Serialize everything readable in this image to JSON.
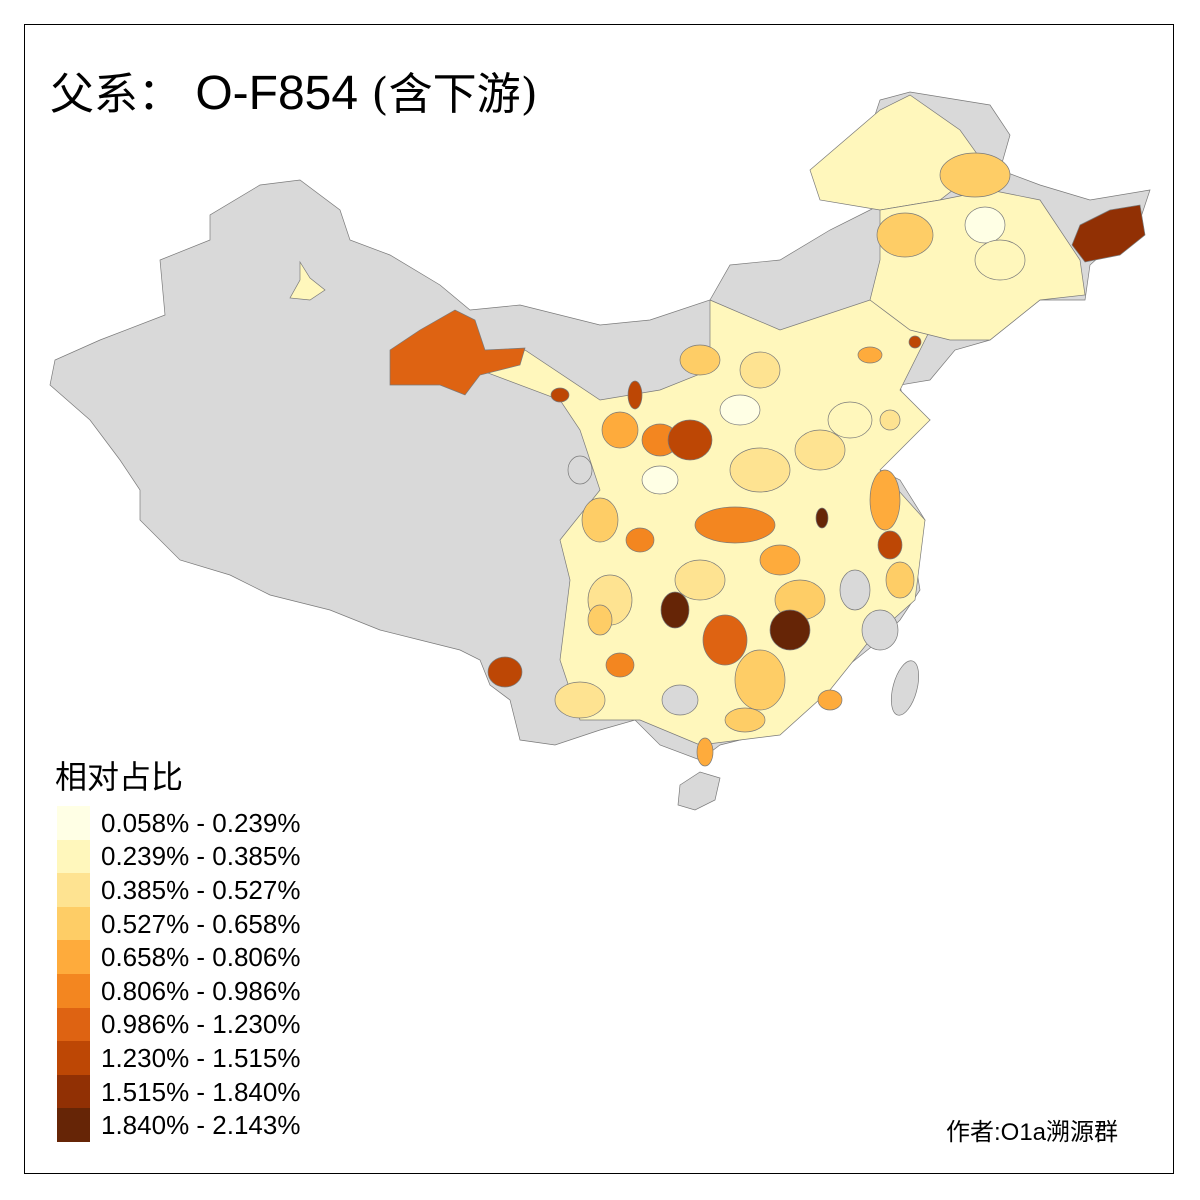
{
  "title": {
    "prefix": "父系：",
    "haplogroup": "O-F854",
    "suffix": "(含下游)"
  },
  "legend": {
    "title": "相对占比",
    "items": [
      {
        "label": "0.058% - 0.239%",
        "color": "#FFFFE5"
      },
      {
        "label": "0.239% - 0.385%",
        "color": "#FFF7BC"
      },
      {
        "label": "0.385% - 0.527%",
        "color": "#FEE391"
      },
      {
        "label": "0.527% - 0.658%",
        "color": "#FECD66"
      },
      {
        "label": "0.658% - 0.806%",
        "color": "#FEAB3C"
      },
      {
        "label": "0.806% - 0.986%",
        "color": "#F38620"
      },
      {
        "label": "0.986% - 1.230%",
        "color": "#DE6312"
      },
      {
        "label": "1.230% - 1.515%",
        "color": "#BD4705"
      },
      {
        "label": "1.515% - 1.840%",
        "color": "#913004"
      },
      {
        "label": "1.840% - 2.143%",
        "color": "#662506"
      }
    ]
  },
  "no_data_color": "#D9D9D9",
  "credit": "作者:O1a溯源群"
}
